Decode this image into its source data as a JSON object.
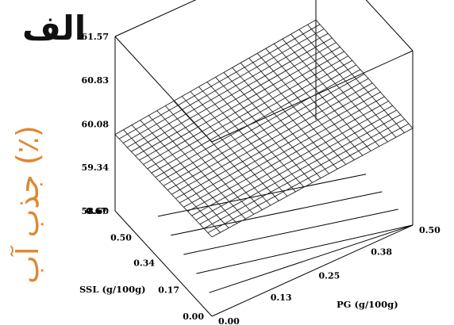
{
  "panel_label": "الف",
  "chart_data": {
    "type": "surface",
    "title": "الف",
    "zlabel": "جذب آب (٪)",
    "xlabel": "SSL (g/100g)",
    "ylabel": "PG (g/100g)",
    "x_ticks": [
      "0.00",
      "0.17",
      "0.34",
      "0.50",
      "0.67"
    ],
    "y_ticks": [
      "0.00",
      "0.13",
      "0.25",
      "0.38",
      "0.50"
    ],
    "z_ticks": [
      "58.60",
      "59.34",
      "60.08",
      "60.83",
      "61.57"
    ],
    "xlim": [
      0,
      0.67
    ],
    "ylim": [
      0,
      0.5
    ],
    "zlim": [
      58.6,
      61.57
    ],
    "surface": {
      "description_values": "nearly flat response surface",
      "z_at_corners": {
        "ssl_0_pg_0": 59.95,
        "ssl_0.67_pg_0": 59.9,
        "ssl_0_pg_0.5": 60.25,
        "ssl_0.67_pg_0.5": 60.3
      }
    },
    "contours_on_floor": 5,
    "grid": false
  }
}
